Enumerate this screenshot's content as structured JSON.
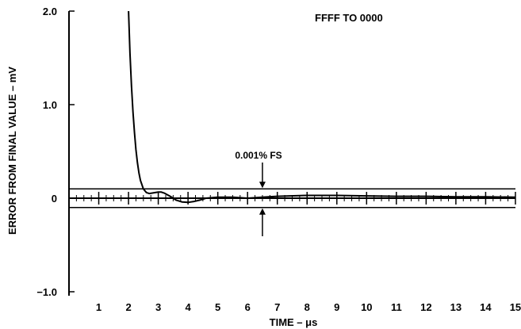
{
  "chart_data": {
    "type": "line",
    "title": "FFFF TO 0000",
    "xlabel": "TIME – μs",
    "ylabel": "ERROR FROM FINAL VALUE – mV",
    "xlim": [
      0,
      15
    ],
    "ylim": [
      -1.0,
      2.0
    ],
    "x_ticks": [
      1,
      2,
      3,
      4,
      5,
      6,
      7,
      8,
      9,
      10,
      11,
      12,
      13,
      14,
      15
    ],
    "x_tick_labels": [
      "1",
      "2",
      "3",
      "4",
      "5",
      "6",
      "7",
      "8",
      "9",
      "10",
      "11",
      "12",
      "13",
      "14",
      "15"
    ],
    "y_ticks": [
      2.0,
      1.0,
      0,
      -1.0
    ],
    "y_tick_labels": [
      "2.0",
      "1.0",
      "0",
      "−1.0"
    ],
    "grid": false,
    "error_band_mV": 0.1,
    "annotation": {
      "text": "0.001% FS",
      "x": 6.5
    },
    "series": [
      {
        "x": [
          2.0,
          2.05,
          2.1,
          2.15,
          2.2,
          2.25,
          2.3,
          2.35,
          2.4,
          2.5,
          2.6,
          2.7,
          2.8,
          2.9,
          3.0,
          3.1,
          3.2,
          3.4,
          3.6,
          3.8,
          4.0,
          4.2,
          4.4,
          4.6,
          5.0,
          5.5,
          6.0,
          6.5,
          7.0,
          8.0,
          9.0,
          10.0,
          11.0,
          12.0,
          13.0,
          14.0,
          15.0
        ],
        "y": [
          2.0,
          1.55,
          1.2,
          0.92,
          0.7,
          0.52,
          0.38,
          0.27,
          0.19,
          0.1,
          0.06,
          0.05,
          0.055,
          0.06,
          0.065,
          0.065,
          0.055,
          0.02,
          -0.02,
          -0.04,
          -0.045,
          -0.035,
          -0.02,
          0.0,
          0.01,
          0.01,
          0.0,
          0.01,
          0.02,
          0.03,
          0.03,
          0.025,
          0.02,
          0.02,
          0.015,
          0.015,
          0.01
        ]
      }
    ]
  }
}
